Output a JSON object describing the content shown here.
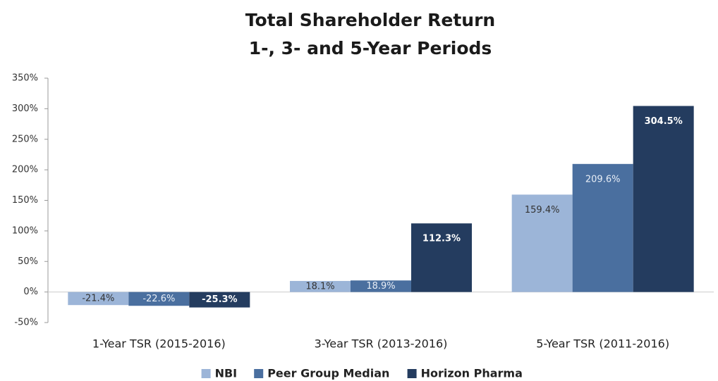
{
  "chart_data": {
    "type": "bar",
    "title": [
      "Total Shareholder Return",
      "1-, 3- and 5-Year Periods"
    ],
    "categories": [
      "1-Year TSR (2015-2016)",
      "3-Year TSR (2013-2016)",
      "5-Year TSR (2011-2016)"
    ],
    "series": [
      {
        "name": "NBI",
        "color": "#9cb5d8",
        "label_color": "#333333",
        "values": [
          -21.4,
          18.1,
          159.4
        ],
        "value_labels": [
          "-21.4%",
          "18.1%",
          "159.4%"
        ]
      },
      {
        "name": "Peer Group Median",
        "color": "#4a6f9f",
        "label_color": "#e8eef6",
        "values": [
          -22.6,
          18.9,
          209.6
        ],
        "value_labels": [
          "-22.6%",
          "18.9%",
          "209.6%"
        ]
      },
      {
        "name": "Horizon Pharma",
        "color": "#243c5f",
        "label_color": "#ffffff",
        "values": [
          -25.3,
          112.3,
          304.5
        ],
        "value_labels": [
          "-25.3%",
          "112.3%",
          "304.5%"
        ]
      }
    ],
    "ylim": [
      -50,
      350
    ],
    "yticks": [
      {
        "value": -50,
        "label": "-50%"
      },
      {
        "value": 0,
        "label": "0%"
      },
      {
        "value": 50,
        "label": "50%"
      },
      {
        "value": 100,
        "label": "100%"
      },
      {
        "value": 150,
        "label": "150%"
      },
      {
        "value": 200,
        "label": "200%"
      },
      {
        "value": 250,
        "label": "250%"
      },
      {
        "value": 300,
        "label": "300%"
      },
      {
        "value": 350,
        "label": "350%"
      }
    ],
    "grid": false,
    "legend": "bottom"
  }
}
